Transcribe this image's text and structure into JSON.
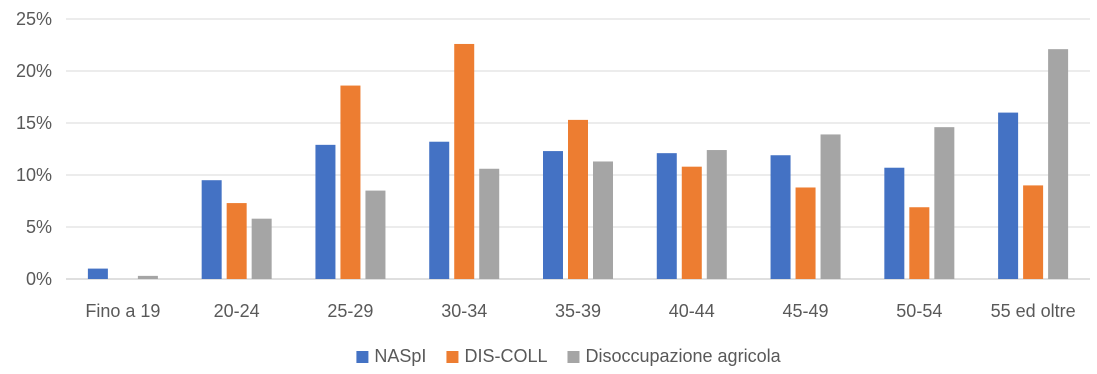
{
  "chart_data": {
    "type": "bar",
    "title": "",
    "xlabel": "",
    "ylabel": "",
    "categories": [
      "Fino a 19",
      "20-24",
      "25-29",
      "30-34",
      "35-39",
      "40-44",
      "45-49",
      "50-54",
      "55 ed oltre"
    ],
    "series": [
      {
        "name": "NASpI",
        "color": "#4472c4",
        "values": [
          1.0,
          9.5,
          12.9,
          13.2,
          12.3,
          12.1,
          11.9,
          10.7,
          16.0
        ]
      },
      {
        "name": "DIS-COLL",
        "color": "#ed7d31",
        "values": [
          0.0,
          7.3,
          18.6,
          22.6,
          15.3,
          10.8,
          8.8,
          6.9,
          9.0
        ]
      },
      {
        "name": "Disoccupazione agricola",
        "color": "#a5a5a5",
        "values": [
          0.3,
          5.8,
          8.5,
          10.6,
          11.3,
          12.4,
          13.9,
          14.6,
          22.1
        ]
      }
    ],
    "ylim": [
      0,
      25
    ],
    "yticks": [
      0,
      5,
      10,
      15,
      20,
      25
    ],
    "ytick_labels": [
      "0%",
      "5%",
      "10%",
      "15%",
      "20%",
      "25%"
    ],
    "grid": true,
    "legend_position": "bottom"
  }
}
